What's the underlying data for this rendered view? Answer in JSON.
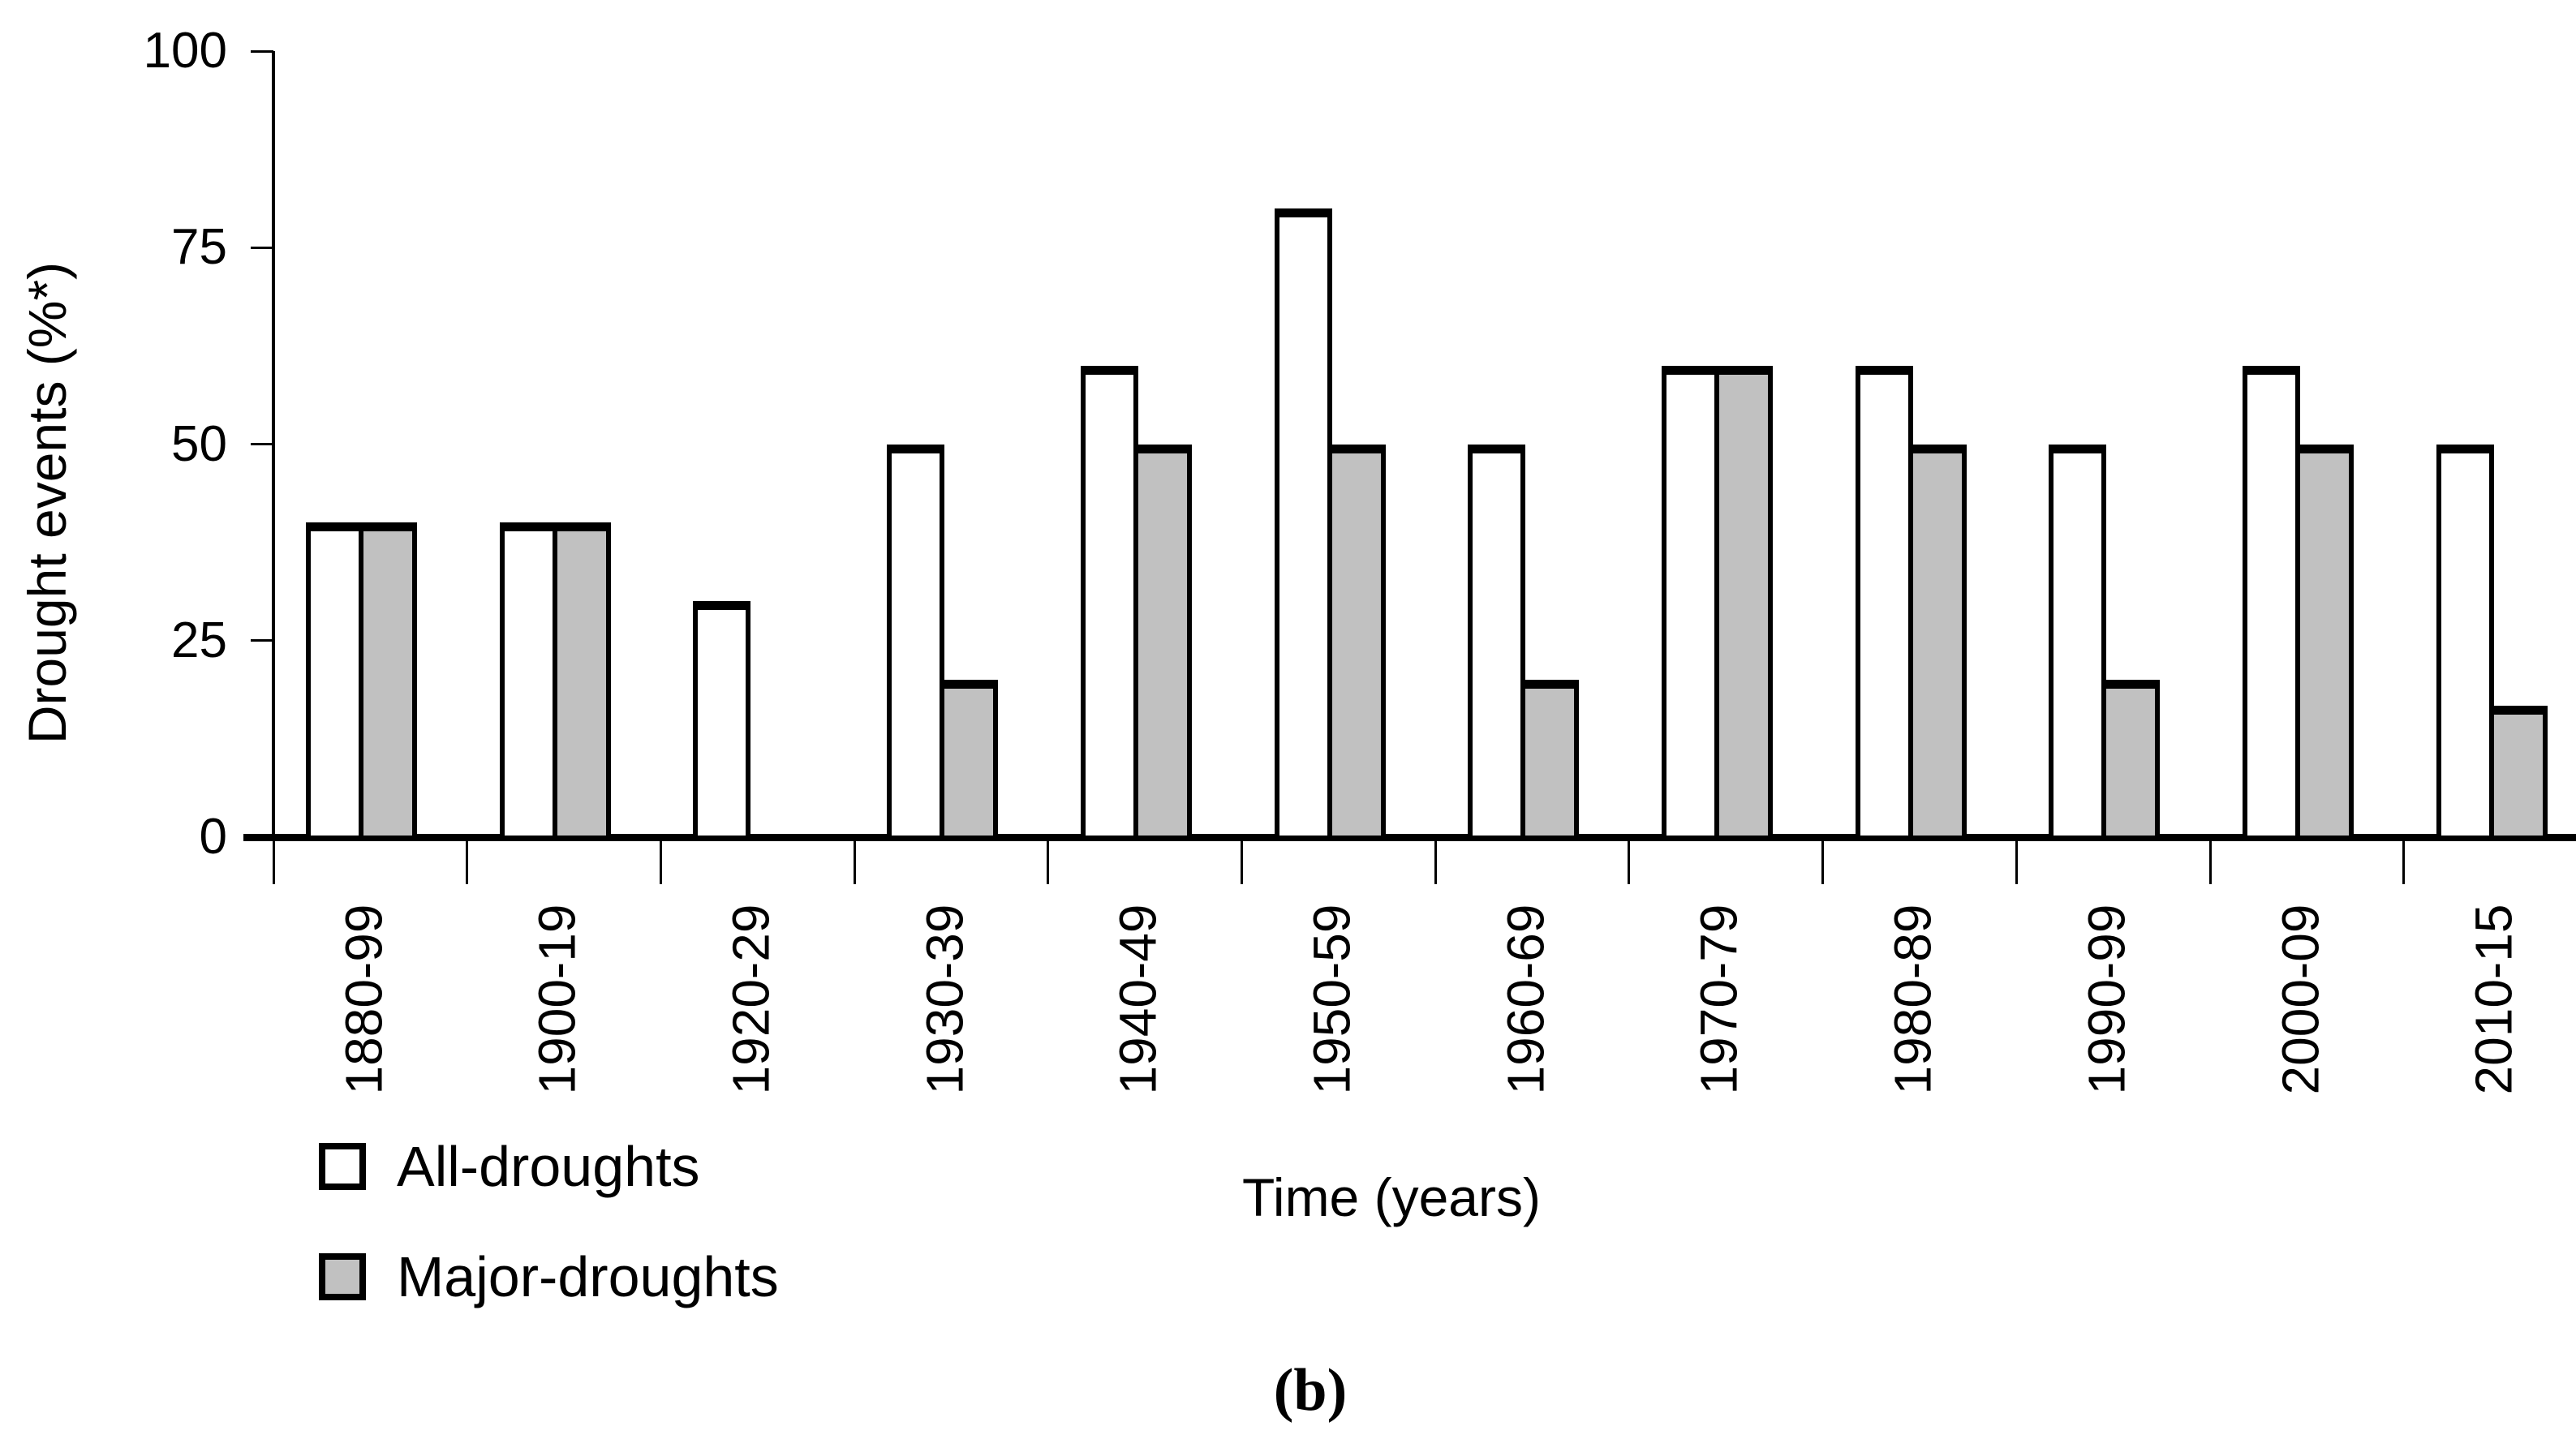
{
  "chart_data": {
    "type": "bar",
    "title": "",
    "ylabel": "Drought events (%*)",
    "xlabel": "Time (years)",
    "caption": "(b)",
    "ylim": [
      0,
      100
    ],
    "yticks": [
      0,
      25,
      50,
      75,
      100
    ],
    "grid": false,
    "legend_position": "bottom-left",
    "bar_outline_color": "#000000",
    "categories": [
      "1880-99",
      "1900-19",
      "1920-29",
      "1930-39",
      "1940-49",
      "1950-59",
      "1960-69",
      "1970-79",
      "1980-89",
      "1990-99",
      "2000-09",
      "2010-15"
    ],
    "series": [
      {
        "name": "All-droughts",
        "fill": "#ffffff",
        "values": [
          40,
          40,
          30,
          50,
          60,
          80,
          50,
          60,
          60,
          50,
          60,
          50
        ]
      },
      {
        "name": "Major-droughts",
        "fill": "#c1c1c1",
        "values": [
          40,
          40,
          0,
          20,
          50,
          50,
          20,
          60,
          50,
          20,
          50,
          16.7
        ]
      }
    ]
  }
}
